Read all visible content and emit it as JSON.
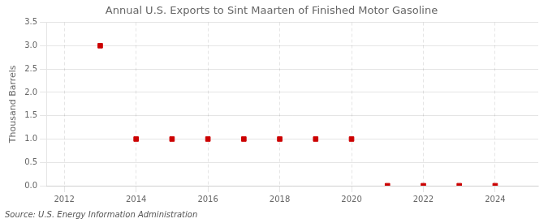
{
  "chart_data": {
    "type": "scatter",
    "title": "Annual U.S. Exports to Sint Maarten of Finished Motor Gasoline",
    "ylabel": "Thousand Barrels",
    "source": "Source: U.S. Energy Information Administration",
    "x": [
      2013,
      2014,
      2015,
      2016,
      2017,
      2018,
      2019,
      2020,
      2021,
      2022,
      2023,
      2024
    ],
    "values": [
      3.0,
      1.0,
      1.0,
      1.0,
      1.0,
      1.0,
      1.0,
      1.0,
      0.0,
      0.0,
      0.0,
      0.0
    ],
    "color": "#cc0000",
    "marker": "square",
    "xlim": [
      2011.5,
      2025.2
    ],
    "xticks": [
      2012,
      2014,
      2016,
      2018,
      2020,
      2022,
      2024
    ],
    "ylim": [
      0.0,
      3.5
    ],
    "yticks": [
      {
        "value": 0.0,
        "label": "0.0"
      },
      0.5,
      {
        "value": 1.0,
        "label": "1.0"
      },
      1.5,
      {
        "value": 2.0,
        "label": "2.0"
      },
      2.5,
      {
        "value": 3.0,
        "label": "3.0"
      },
      3.5
    ],
    "grid": true
  }
}
